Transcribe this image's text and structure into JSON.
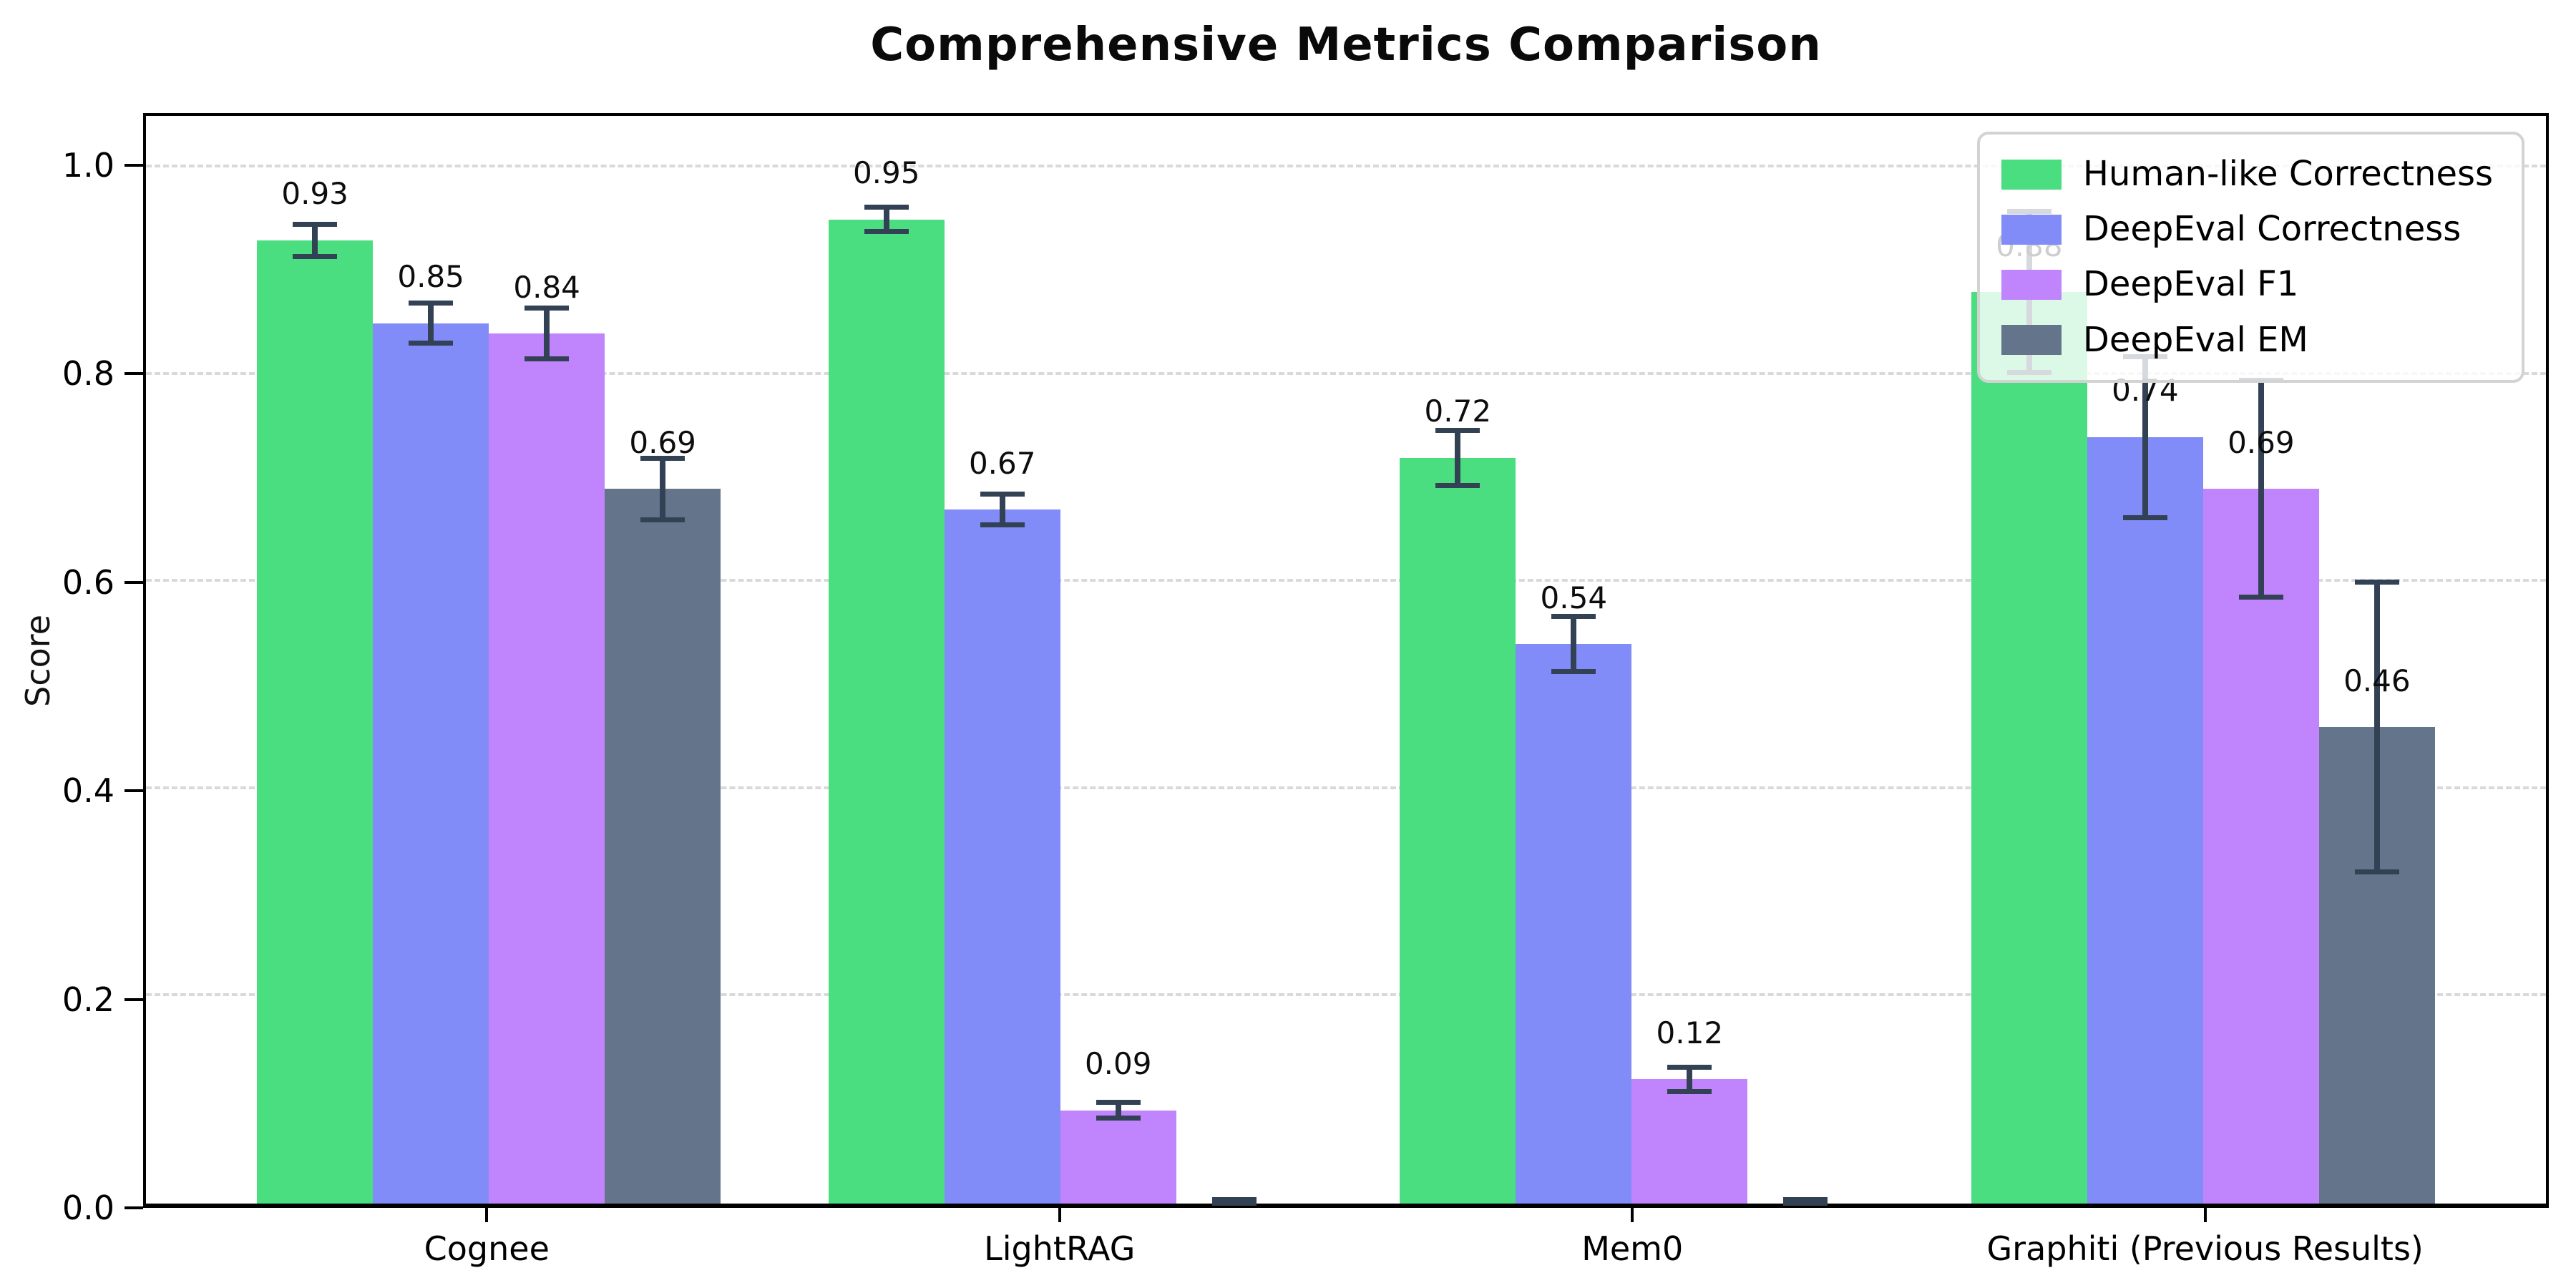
{
  "title": "Comprehensive Metrics Comparison",
  "chart_data": {
    "type": "bar",
    "title": "Comprehensive Metrics Comparison",
    "xlabel": "",
    "ylabel": "Score",
    "ylim": [
      0,
      1.05
    ],
    "yticks": [
      0.0,
      0.2,
      0.4,
      0.6,
      0.8,
      1.0
    ],
    "ytick_labels": [
      "0.0",
      "0.2",
      "0.4",
      "0.6",
      "0.8",
      "1.0"
    ],
    "categories": [
      "Cognee",
      "LightRAG",
      "Mem0",
      "Graphiti (Previous Results)"
    ],
    "series": [
      {
        "name": "Human-like Correctness",
        "color": "#4ade80",
        "values": [
          0.93,
          0.95,
          0.72,
          0.88
        ],
        "errors": [
          0.016,
          0.012,
          0.027,
          0.078
        ],
        "bar_labels": [
          "0.93",
          "0.95",
          "0.72",
          "0.88"
        ]
      },
      {
        "name": "DeepEval Correctness",
        "color": "#818cf8",
        "values": [
          0.85,
          0.67,
          0.54,
          0.74
        ],
        "errors": [
          0.02,
          0.015,
          0.027,
          0.078
        ],
        "bar_labels": [
          "0.85",
          "0.67",
          "0.54",
          "0.74"
        ]
      },
      {
        "name": "DeepEval F1",
        "color": "#c084fc",
        "values": [
          0.84,
          0.09,
          0.12,
          0.69
        ],
        "errors": [
          0.025,
          0.008,
          0.012,
          0.105
        ],
        "bar_labels": [
          "0.84",
          "0.09",
          "0.12",
          "0.69"
        ]
      },
      {
        "name": "DeepEval EM",
        "color": "#64748b",
        "values": [
          0.69,
          0.0,
          0.0,
          0.46
        ],
        "errors": [
          0.03,
          0.004,
          0.004,
          0.14
        ],
        "bar_labels": [
          "0.69",
          null,
          null,
          "0.46"
        ]
      }
    ],
    "grid": "horizontal-dashed",
    "grid_color": "#d9d9d9",
    "error_bar_color": "#334155",
    "spine_color": "#000000",
    "background": "#ffffff",
    "legend_position": "upper-right",
    "legend_border_color": "#d3d3d3"
  }
}
